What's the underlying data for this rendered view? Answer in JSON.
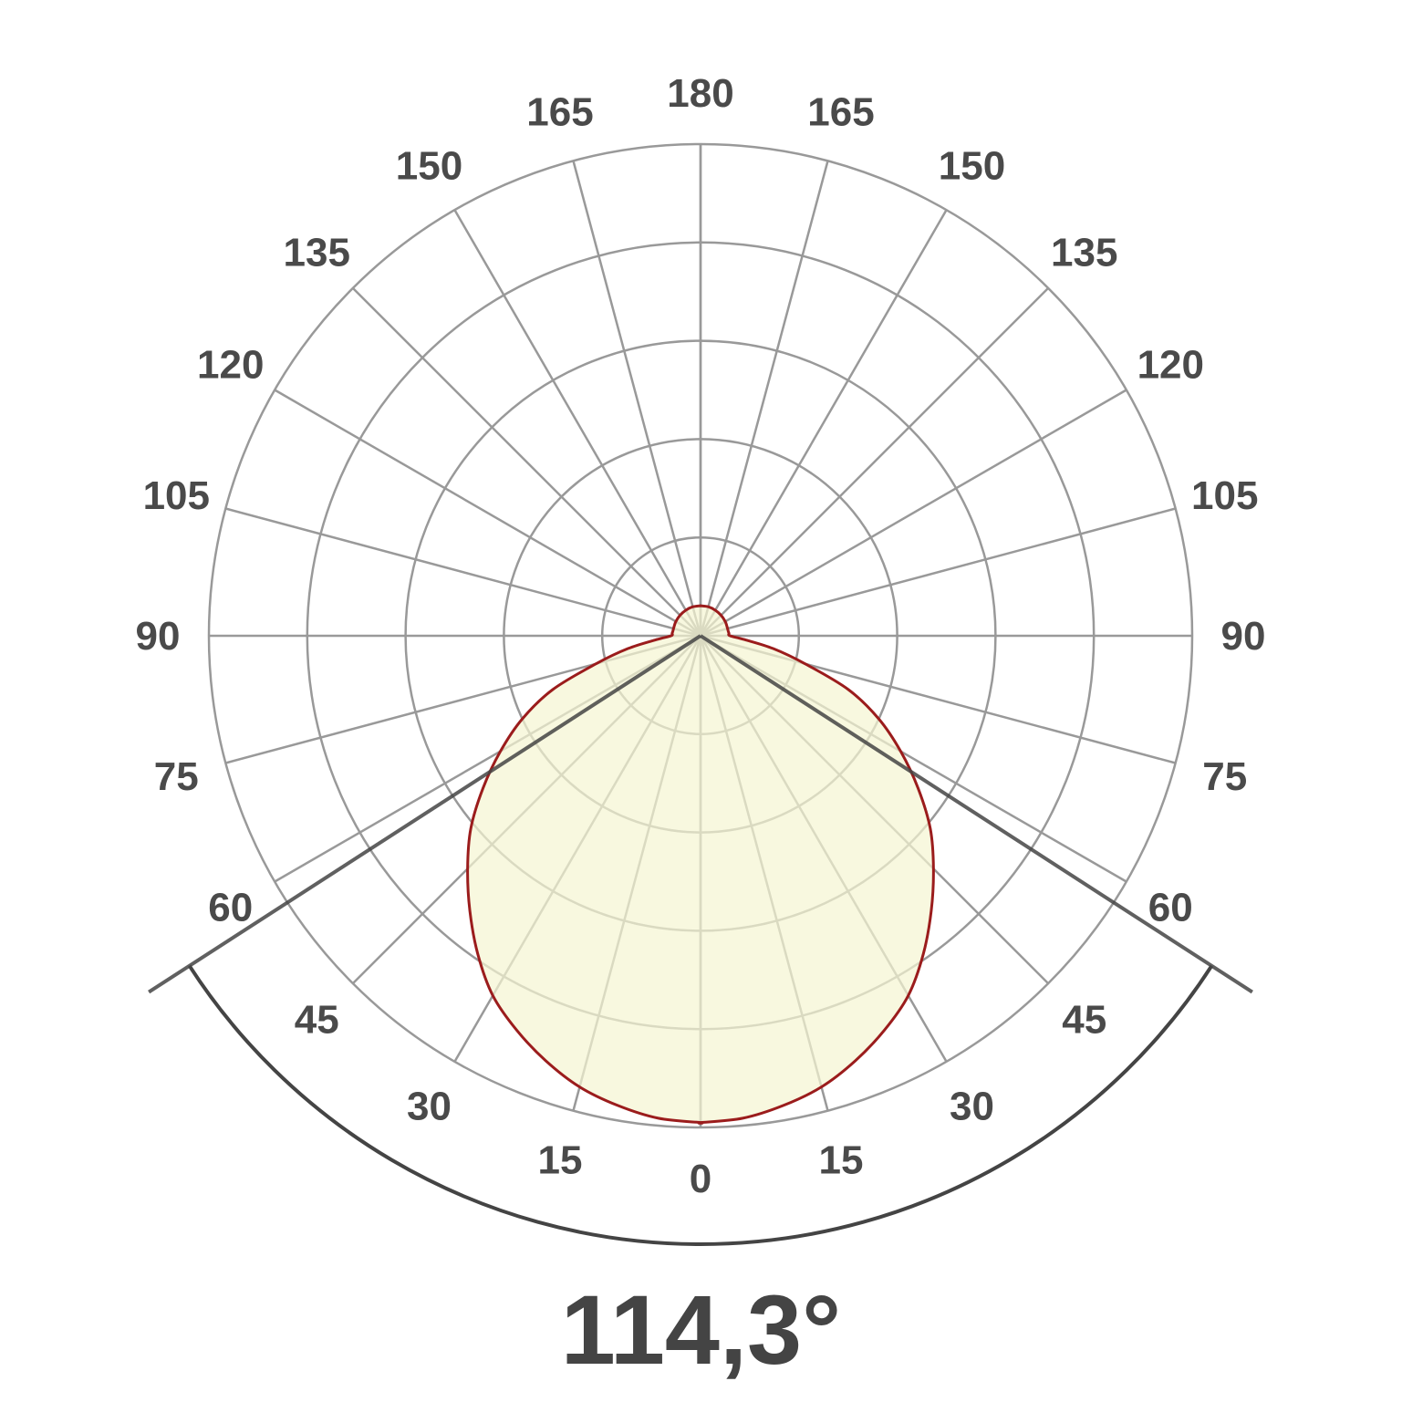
{
  "chart_data": {
    "type": "polar",
    "title": "",
    "beam_angle_label": "114,3°",
    "beam_angle_deg": 114.3,
    "angle_tick_labels": [
      "0",
      "15",
      "30",
      "45",
      "60",
      "75",
      "90",
      "105",
      "120",
      "135",
      "150",
      "165",
      "180"
    ],
    "angular_step_deg": 15,
    "ring_count": 5,
    "radial_max": 1,
    "grid": true,
    "series": [
      {
        "angles_deg": [
          0,
          5,
          10,
          15,
          20,
          25,
          30,
          35,
          40,
          45,
          50,
          55,
          60,
          65,
          70,
          75,
          80,
          85,
          90,
          95,
          100,
          110,
          120,
          135,
          150,
          165,
          180
        ],
        "values": [
          0.99,
          0.985,
          0.97,
          0.95,
          0.92,
          0.885,
          0.845,
          0.79,
          0.73,
          0.67,
          0.61,
          0.54,
          0.47,
          0.4,
          0.32,
          0.22,
          0.15,
          0.09,
          0.06,
          0.058,
          0.057,
          0.057,
          0.058,
          0.059,
          0.06,
          0.061,
          0.061
        ],
        "symmetric": true
      }
    ],
    "colors": {
      "curve": "#9b1c1c",
      "fill": "#f5f5d2",
      "grid": "#999999",
      "beam_lines": "#444444",
      "text": "#4a4a4a"
    }
  }
}
